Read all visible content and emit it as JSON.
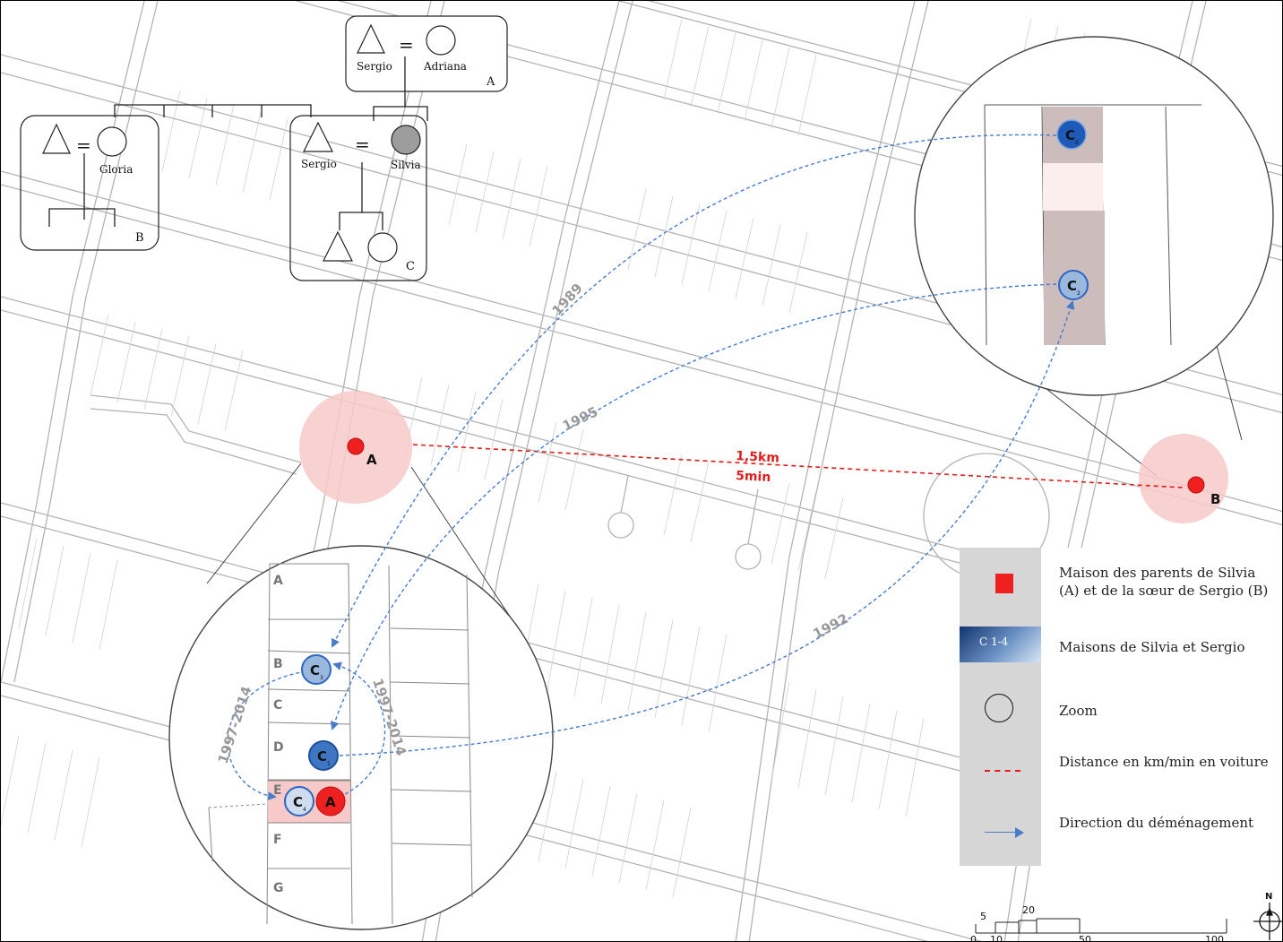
{
  "colors": {
    "house_red": "#ee2020",
    "zoom_pink": "#f7c9c9",
    "move_blue": "#4a7bc8",
    "house_blue_dark": "#1e5ab8",
    "house_blue_mid": "#3f76c4",
    "house_blue_light": "#9ab8de",
    "distance_red": "#e21b1b",
    "street_gray": "#9a9a9a"
  },
  "kinship": {
    "box_a": {
      "letter": "A",
      "male_name": "Sergio",
      "female_name": "Adriana",
      "marriage_sign": "="
    },
    "box_b": {
      "letter": "B",
      "female_name": "Gloria",
      "marriage_sign": "="
    },
    "box_c": {
      "letter": "C",
      "male_name": "Sergio",
      "female_name": "Silvia",
      "marriage_sign": "="
    }
  },
  "map_labels": {
    "point_a": "A",
    "point_b": "B",
    "distance_km": "1,5km",
    "distance_min": "5min",
    "year_1989": "1989",
    "year_1995": "1995",
    "year_1992": "1992",
    "period_left": "1997-2014",
    "period_right": "1997-2014"
  },
  "zoom_lots": [
    "A",
    "B",
    "C",
    "D",
    "E",
    "F",
    "G"
  ],
  "houses": {
    "c0_letter": "C",
    "c0_sub": "0",
    "c1_letter": "C",
    "c1_sub": "1",
    "c2_letter": "C",
    "c2_sub": "2",
    "c3_letter": "C",
    "c3_sub": "3",
    "c4_letter": "C",
    "c4_sub": "4",
    "a_letter": "A"
  },
  "legend": {
    "item_parents": "Maison des parents de Silvia (A) et de la sœur de Sergio (B)",
    "swatch_c_label": "C 1-4",
    "item_houses": "Maisons de Silvia et Sergio",
    "item_zoom": "Zoom",
    "item_distance": "Distance en km/min en voiture",
    "item_direction": "Direction du déménagement"
  },
  "scale_bar": {
    "labels": [
      "5",
      "20",
      "0",
      "10",
      "50",
      "100"
    ],
    "north": "N"
  }
}
